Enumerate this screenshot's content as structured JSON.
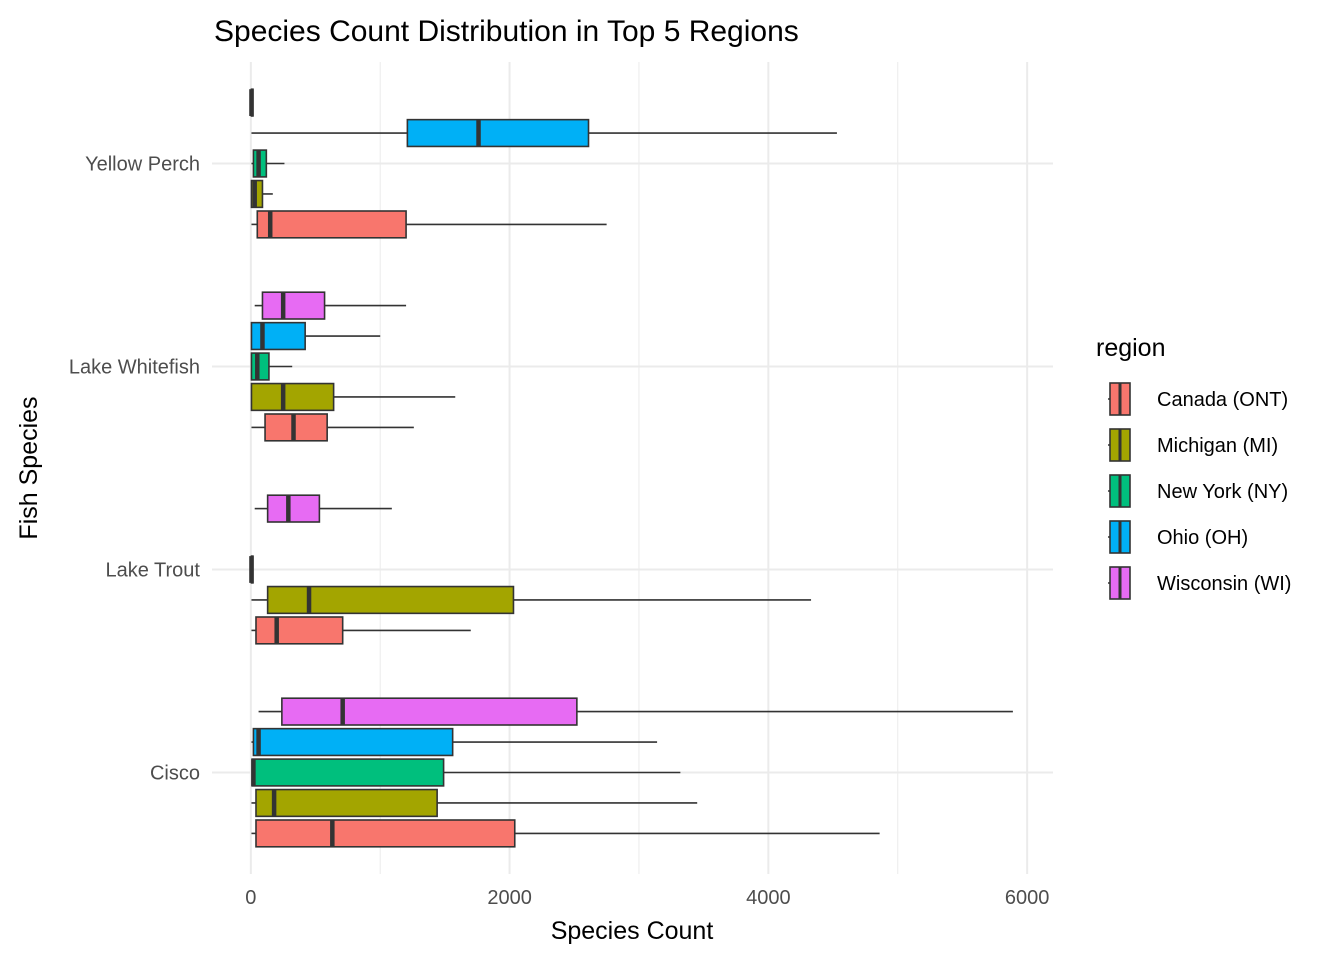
{
  "chart_data": {
    "type": "boxplot",
    "orientation": "horizontal",
    "title": "Species Count Distribution in Top 5 Regions",
    "xlabel": "Species Count",
    "ylabel": "Fish Species",
    "xlim": [
      -300,
      6200
    ],
    "x_ticks": [
      0,
      2000,
      4000,
      6000
    ],
    "x_tick_labels": [
      "0",
      "2000",
      "4000",
      "6000"
    ],
    "categories": [
      "Cisco",
      "Lake Trout",
      "Lake Whitefish",
      "Yellow Perch"
    ],
    "grid": true,
    "legend": {
      "title": "region",
      "position": "right"
    },
    "series": [
      {
        "name": "Canada (ONT)",
        "color": "#F8766D",
        "boxes": [
          {
            "category": "Cisco",
            "min": 5,
            "q1": 40,
            "median": 630,
            "q3": 2040,
            "max": 4860
          },
          {
            "category": "Lake Trout",
            "min": 5,
            "q1": 40,
            "median": 200,
            "q3": 710,
            "max": 1700
          },
          {
            "category": "Lake Whitefish",
            "min": 5,
            "q1": 110,
            "median": 330,
            "q3": 590,
            "max": 1260
          },
          {
            "category": "Yellow Perch",
            "min": 5,
            "q1": 50,
            "median": 150,
            "q3": 1200,
            "max": 2750
          }
        ]
      },
      {
        "name": "Michigan (MI)",
        "color": "#A3A500",
        "boxes": [
          {
            "category": "Cisco",
            "min": 5,
            "q1": 40,
            "median": 180,
            "q3": 1440,
            "max": 3450
          },
          {
            "category": "Lake Trout",
            "min": 5,
            "q1": 130,
            "median": 450,
            "q3": 2030,
            "max": 4330
          },
          {
            "category": "Lake Whitefish",
            "min": 5,
            "q1": 5,
            "median": 250,
            "q3": 640,
            "max": 1580
          },
          {
            "category": "Yellow Perch",
            "min": 5,
            "q1": 5,
            "median": 30,
            "q3": 90,
            "max": 170
          }
        ]
      },
      {
        "name": "New York (NY)",
        "color": "#00BF7D",
        "boxes": [
          {
            "category": "Cisco",
            "min": 5,
            "q1": 10,
            "median": 20,
            "q3": 1490,
            "max": 3320
          },
          {
            "category": "Lake Trout",
            "min": 5,
            "q1": 5,
            "median": 5,
            "q3": 10,
            "max": 10
          },
          {
            "category": "Lake Whitefish",
            "min": 5,
            "q1": 5,
            "median": 50,
            "q3": 140,
            "max": 320
          },
          {
            "category": "Yellow Perch",
            "min": 5,
            "q1": 20,
            "median": 60,
            "q3": 120,
            "max": 260
          }
        ]
      },
      {
        "name": "Ohio (OH)",
        "color": "#00B0F6",
        "boxes": [
          {
            "category": "Cisco",
            "min": 5,
            "q1": 20,
            "median": 60,
            "q3": 1560,
            "max": 3140
          },
          {
            "category": "Lake Whitefish",
            "min": 5,
            "q1": 5,
            "median": 90,
            "q3": 420,
            "max": 1000
          },
          {
            "category": "Yellow Perch",
            "min": 5,
            "q1": 1210,
            "median": 1760,
            "q3": 2610,
            "max": 4530
          }
        ]
      },
      {
        "name": "Wisconsin (WI)",
        "color": "#E76BF3",
        "boxes": [
          {
            "category": "Cisco",
            "min": 60,
            "q1": 240,
            "median": 710,
            "q3": 2520,
            "max": 5890
          },
          {
            "category": "Lake Trout",
            "min": 30,
            "q1": 130,
            "median": 290,
            "q3": 530,
            "max": 1090
          },
          {
            "category": "Lake Whitefish",
            "min": 30,
            "q1": 90,
            "median": 250,
            "q3": 570,
            "max": 1200
          },
          {
            "category": "Yellow Perch",
            "min": 5,
            "q1": 5,
            "median": 5,
            "q3": 10,
            "max": 10
          }
        ]
      }
    ]
  }
}
